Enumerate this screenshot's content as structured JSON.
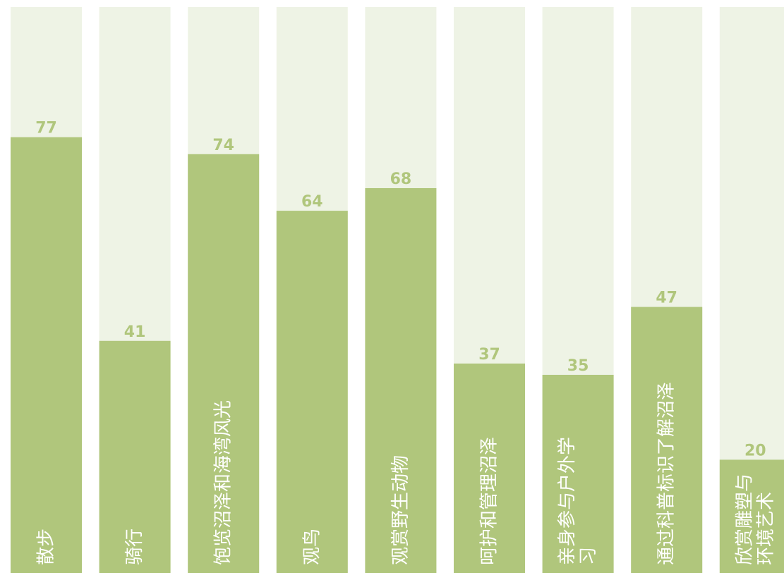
{
  "chart_data": {
    "type": "bar",
    "categories": [
      "散步",
      "骑行",
      "饱览沼泽和海湾风光",
      "观鸟",
      "观赏野生动物",
      "呵护和管理沼泽",
      "亲身参与户外学习",
      "通过科普标识了解沼泽",
      "欣赏雕塑与环境艺术"
    ],
    "category_label_lines": [
      [
        "散步"
      ],
      [
        "骑行"
      ],
      [
        "饱览沼泽和海湾风光"
      ],
      [
        "观鸟"
      ],
      [
        "观赏野生动物"
      ],
      [
        "呵护和管理沼泽"
      ],
      [
        "亲身参与户外学",
        "习"
      ],
      [
        "通过科普标识了解沼泽"
      ],
      [
        "欣赏雕塑与",
        "环境艺术"
      ]
    ],
    "values": [
      77,
      41,
      74,
      64,
      68,
      37,
      35,
      47,
      20
    ],
    "value_labels": [
      "77",
      "41",
      "74",
      "64",
      "68",
      "37",
      "35",
      "47",
      "20"
    ],
    "ylim": [
      0,
      100
    ],
    "grid": false,
    "legend": "none",
    "colors": {
      "bar": "#b0c67c",
      "track": "#eef3e5",
      "value_label": "#b0c67c",
      "category_label": "#ffffff"
    }
  }
}
